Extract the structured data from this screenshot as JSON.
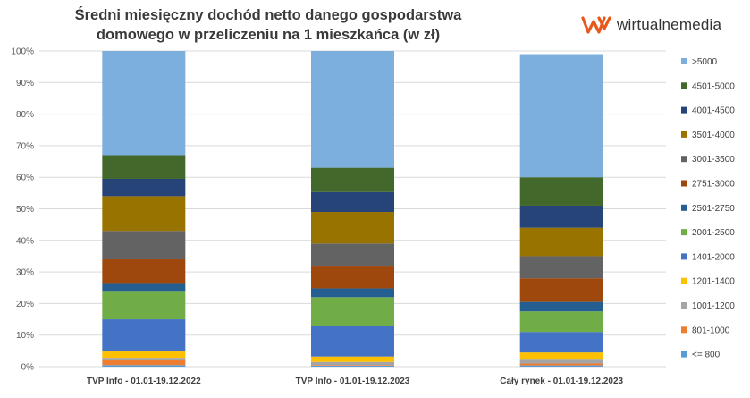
{
  "chart_data": {
    "type": "bar",
    "stacked": true,
    "title_line1": "Średni miesięczny dochód netto danego gospodarstwa",
    "title_line2": "domowego w przeliczeniu na 1 mieszkańca (w zł)",
    "xlabel": "",
    "ylabel": "",
    "ylim": [
      0,
      100
    ],
    "y_ticks": [
      "0%",
      "10%",
      "20%",
      "30%",
      "40%",
      "50%",
      "60%",
      "70%",
      "80%",
      "90%",
      "100%"
    ],
    "grid": true,
    "legend_position": "right",
    "categories": [
      "TVP Info - 01.01-19.12.2022",
      "TVP Info - 01.01-19.12.2023",
      "Cały rynek - 01.01-19.12.2023"
    ],
    "series": [
      {
        "name": "<= 800",
        "color": "#5b9bd5",
        "values": [
          0.5,
          0.3,
          0.4
        ]
      },
      {
        "name": "801-1000",
        "color": "#ed7d31",
        "values": [
          1.5,
          0.2,
          0.6
        ]
      },
      {
        "name": "1001-1200",
        "color": "#a5a5a5",
        "values": [
          0.8,
          1.0,
          1.5
        ]
      },
      {
        "name": "1201-1400",
        "color": "#ffc000",
        "values": [
          2.0,
          1.7,
          2.0
        ]
      },
      {
        "name": "1401-2000",
        "color": "#4472c4",
        "values": [
          10.2,
          9.8,
          6.5
        ]
      },
      {
        "name": "2001-2500",
        "color": "#70ad47",
        "values": [
          9.0,
          9.0,
          6.5
        ]
      },
      {
        "name": "2501-2750",
        "color": "#255e91",
        "values": [
          2.5,
          2.8,
          3.0
        ]
      },
      {
        "name": "2751-3000",
        "color": "#9e480e",
        "values": [
          7.5,
          7.2,
          7.5
        ]
      },
      {
        "name": "3001-3500",
        "color": "#636363",
        "values": [
          9.0,
          7.0,
          7.0
        ]
      },
      {
        "name": "3501-4000",
        "color": "#997300",
        "values": [
          11.0,
          10.0,
          9.0
        ]
      },
      {
        "name": "4001-4500",
        "color": "#264478",
        "values": [
          5.5,
          6.3,
          7.0
        ]
      },
      {
        "name": "4501-5000",
        "color": "#43682b",
        "values": [
          7.5,
          7.7,
          9.0
        ]
      },
      {
        "name": ">5000",
        "color": "#7cafdd",
        "values": [
          33.0,
          37.0,
          39.0
        ]
      }
    ]
  },
  "logo": {
    "text": "wirtualnemedia",
    "icon": "wm-logo-icon",
    "color": "#e8581b"
  }
}
